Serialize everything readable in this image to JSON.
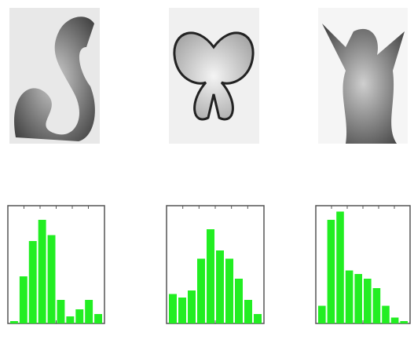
{
  "chart_data": [
    {
      "type": "bar",
      "color": "#22ee22",
      "ylim": [
        0,
        100
      ],
      "categories": [
        null,
        null,
        null,
        null,
        null,
        null,
        null,
        null,
        null,
        null
      ],
      "values": [
        2,
        40,
        70,
        88,
        75,
        20,
        6,
        12,
        20,
        8
      ]
    },
    {
      "type": "bar",
      "color": "#22ee22",
      "ylim": [
        0,
        100
      ],
      "categories": [
        null,
        null,
        null,
        null,
        null,
        null,
        null,
        null,
        null,
        null
      ],
      "values": [
        25,
        22,
        28,
        55,
        80,
        62,
        55,
        38,
        20,
        8
      ]
    },
    {
      "type": "bar",
      "color": "#22ee22",
      "ylim": [
        0,
        100
      ],
      "categories": [
        null,
        null,
        null,
        null,
        null,
        null,
        null,
        null,
        null,
        null
      ],
      "values": [
        15,
        88,
        95,
        45,
        42,
        38,
        30,
        15,
        5,
        2
      ]
    }
  ]
}
